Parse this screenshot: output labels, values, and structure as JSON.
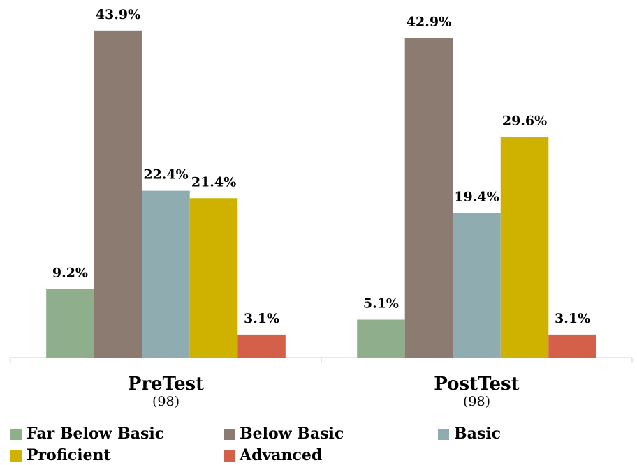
{
  "chart_data": {
    "type": "bar",
    "categories": [
      "PreTest",
      "PostTest"
    ],
    "category_sublabels": [
      "(98)",
      "(98)"
    ],
    "series": [
      {
        "name": "Far Below Basic",
        "color": "#8fae8b",
        "values": [
          9.2,
          5.1
        ],
        "value_labels": [
          "9.2%",
          "5.1%"
        ]
      },
      {
        "name": "Below Basic",
        "color": "#8b7b70",
        "values": [
          43.9,
          42.9
        ],
        "value_labels": [
          "43.9%",
          "42.9%"
        ]
      },
      {
        "name": "Basic",
        "color": "#8fadb0",
        "values": [
          22.4,
          19.4
        ],
        "value_labels": [
          "22.4%",
          "19.4%"
        ]
      },
      {
        "name": "Proficient",
        "color": "#cfb200",
        "values": [
          21.4,
          29.6
        ],
        "value_labels": [
          "21.4%",
          "29.6%"
        ]
      },
      {
        "name": "Advanced",
        "color": "#d4604a",
        "values": [
          3.1,
          3.1
        ],
        "value_labels": [
          "3.1%",
          "3.1%"
        ]
      }
    ],
    "ylim": [
      0,
      48
    ]
  }
}
